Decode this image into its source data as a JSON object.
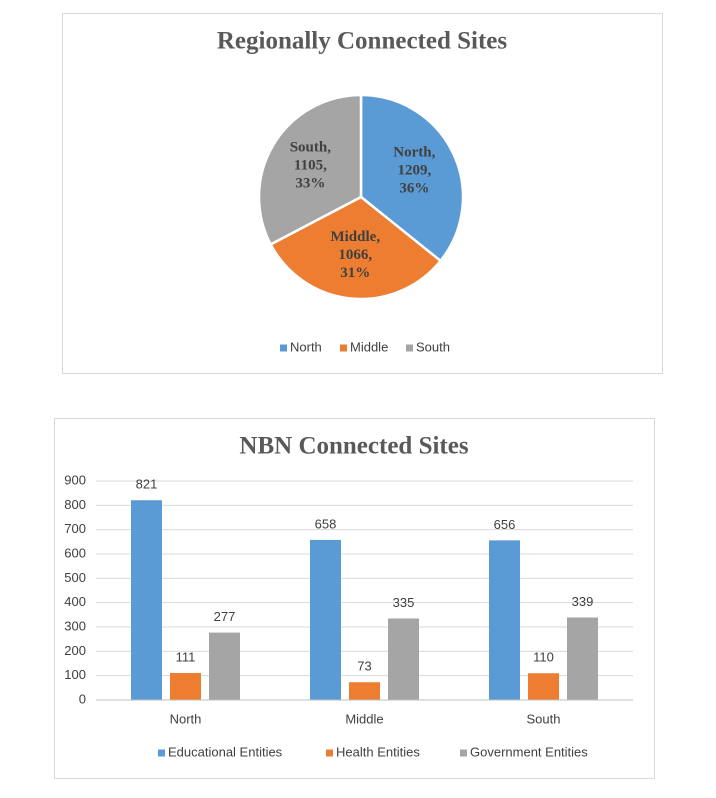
{
  "chart_data": [
    {
      "type": "pie",
      "title": "Regionally Connected Sites",
      "categories": [
        "North",
        "Middle",
        "South"
      ],
      "values": [
        1209,
        1066,
        1105
      ],
      "value_labels": [
        "North,\n1209,\n36%",
        "Middle,\n1066,\n31%",
        "South,\n1105,\n33%"
      ],
      "colors": [
        "#5b9bd5",
        "#ed7d31",
        "#a5a5a5"
      ],
      "legend": "bottom"
    },
    {
      "type": "bar",
      "title": "NBN Connected Sites",
      "categories": [
        "North",
        "Middle",
        "South"
      ],
      "series": [
        {
          "name": "Educational Entities",
          "color": "#5b9bd5",
          "values": [
            821,
            658,
            656
          ]
        },
        {
          "name": "Health Entities",
          "color": "#ed7d31",
          "values": [
            111,
            73,
            110
          ]
        },
        {
          "name": "Government Entities",
          "color": "#a5a5a5",
          "values": [
            277,
            335,
            339
          ]
        }
      ],
      "ylim": [
        0,
        900
      ],
      "yticks": [
        0,
        100,
        200,
        300,
        400,
        500,
        600,
        700,
        800,
        900
      ],
      "grid": true,
      "legend": "bottom"
    }
  ]
}
